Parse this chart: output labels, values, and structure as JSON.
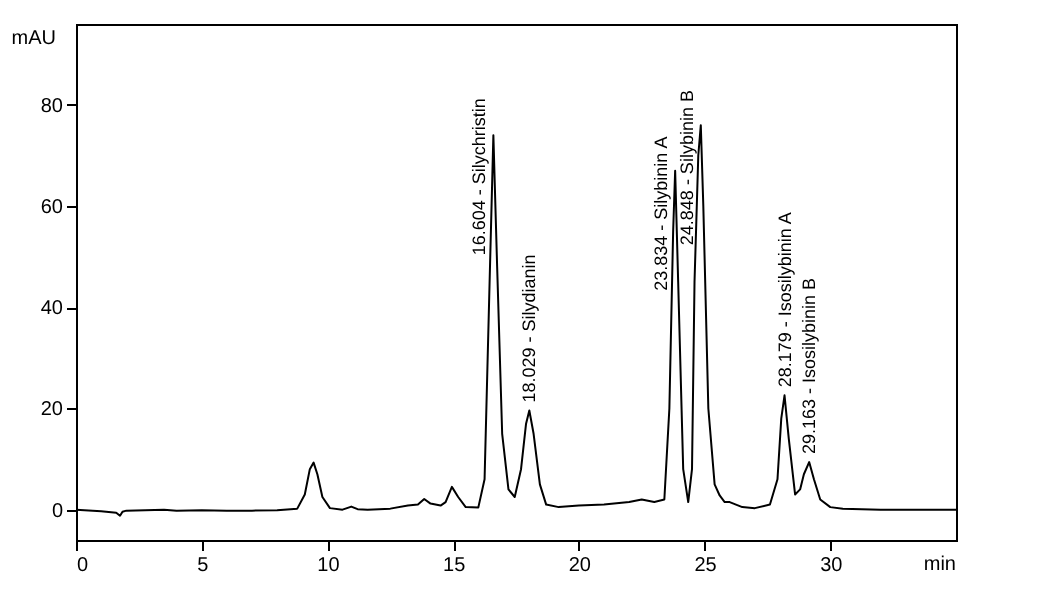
{
  "chart_data": {
    "type": "line",
    "xlabel": "min",
    "ylabel": "mAU",
    "xlim": [
      0,
      35
    ],
    "ylim": [
      -6,
      96
    ],
    "xticks": [
      0,
      5,
      10,
      15,
      20,
      25,
      30
    ],
    "yticks": [
      0,
      20,
      40,
      60,
      80
    ],
    "grid": false,
    "marker": "none",
    "line_style": "solid",
    "series": [
      {
        "color": "#000000",
        "x": [
          0,
          1.0,
          1.6,
          1.75,
          1.85,
          2.0,
          3.5,
          4.0,
          5.0,
          6.0,
          7.0,
          8.0,
          8.8,
          9.1,
          9.3,
          9.45,
          9.6,
          9.8,
          10.1,
          10.6,
          10.95,
          11.2,
          11.6,
          12.5,
          13.2,
          13.6,
          13.85,
          14.1,
          14.5,
          14.7,
          14.95,
          15.2,
          15.5,
          16.0,
          16.25,
          16.45,
          16.6,
          16.75,
          16.95,
          17.2,
          17.45,
          17.7,
          17.9,
          18.03,
          18.2,
          18.45,
          18.7,
          19.2,
          20.0,
          21.0,
          22.0,
          22.5,
          23.0,
          23.4,
          23.6,
          23.75,
          23.83,
          23.95,
          24.15,
          24.35,
          24.5,
          24.6,
          24.75,
          24.85,
          24.95,
          25.15,
          25.4,
          25.6,
          25.8,
          26.0,
          26.5,
          27.0,
          27.6,
          27.9,
          28.05,
          28.18,
          28.35,
          28.6,
          28.8,
          28.95,
          29.16,
          29.35,
          29.6,
          30.0,
          30.5,
          32,
          35
        ],
        "values": [
          0,
          -0.3,
          -0.6,
          -1.2,
          -0.4,
          -0.2,
          0,
          -0.2,
          -0.1,
          -0.2,
          -0.2,
          -0.1,
          0.2,
          3,
          8,
          9.3,
          7,
          2.5,
          0.3,
          0,
          0.6,
          0.1,
          0,
          0.2,
          0.8,
          1,
          2.1,
          1.2,
          0.8,
          1.5,
          4.5,
          2.5,
          0.5,
          0.4,
          6,
          45,
          74,
          48,
          15,
          4,
          2.5,
          8,
          17,
          19.6,
          15,
          5,
          1,
          0.5,
          0.8,
          1,
          1.5,
          2,
          1.5,
          2,
          20,
          55,
          67,
          45,
          8,
          1.5,
          8,
          45,
          70,
          76,
          60,
          20,
          5,
          2.8,
          1.5,
          1.5,
          0.5,
          0.3,
          1,
          6,
          18,
          22.6,
          14,
          3,
          4,
          7,
          9.4,
          6,
          2,
          0.5,
          0.2,
          0,
          0
        ]
      }
    ],
    "annotations": [
      {
        "text": "16.604 - Silychristin",
        "x": 16.6,
        "y": 74
      },
      {
        "text": "18.029 - Silydianin",
        "x": 18.03,
        "y": 19.6
      },
      {
        "text": "23.834 - Silybinin A",
        "x": 23.83,
        "y": 67
      },
      {
        "text": "24.848 - Silybinin B",
        "x": 24.85,
        "y": 76
      },
      {
        "text": "28.179 - Isosilybinin A",
        "x": 28.18,
        "y": 22.6
      },
      {
        "text": "29.163 - Isosilybinin B",
        "x": 29.16,
        "y": 9.4
      }
    ]
  }
}
